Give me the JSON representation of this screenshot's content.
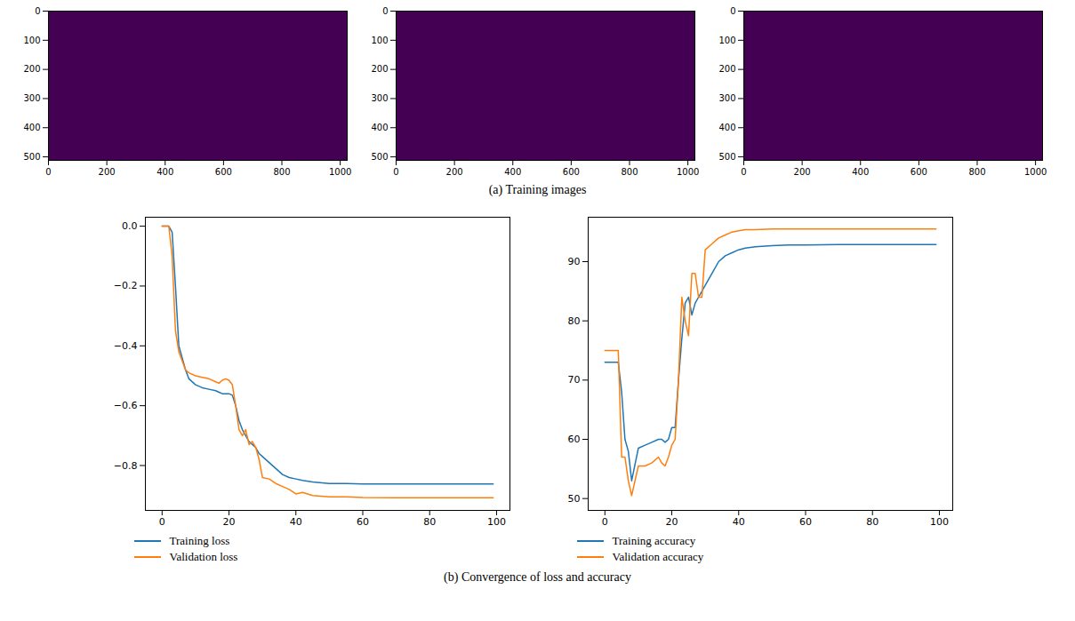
{
  "captions": [
    "(a) Training images",
    "(b) Convergence of loss and accuracy"
  ],
  "chart_data": [
    {
      "type": "image",
      "color": "#440154",
      "xlim": [
        0,
        1024
      ],
      "ylim": [
        512,
        0
      ],
      "xticks": [
        0,
        200,
        400,
        600,
        800,
        1000
      ],
      "yticks": [
        0,
        100,
        200,
        300,
        400,
        500
      ]
    },
    {
      "type": "image",
      "color": "#440154",
      "xlim": [
        0,
        1024
      ],
      "ylim": [
        512,
        0
      ],
      "xticks": [
        0,
        200,
        400,
        600,
        800,
        1000
      ],
      "yticks": [
        0,
        100,
        200,
        300,
        400,
        500
      ]
    },
    {
      "type": "image",
      "color": "#440154",
      "xlim": [
        0,
        1024
      ],
      "ylim": [
        512,
        0
      ],
      "xticks": [
        0,
        200,
        400,
        600,
        800,
        1000
      ],
      "yticks": [
        0,
        100,
        200,
        300,
        400,
        500
      ]
    },
    {
      "type": "line",
      "legend": "bottom",
      "x": [
        0,
        2,
        3,
        4,
        5,
        6,
        7,
        8,
        10,
        12,
        14,
        16,
        17,
        18,
        19,
        20,
        21,
        22,
        23,
        24,
        25,
        26,
        27,
        28,
        29,
        30,
        32,
        34,
        36,
        38,
        40,
        42,
        45,
        50,
        55,
        60,
        70,
        80,
        90,
        99
      ],
      "xlim": [
        -5,
        104
      ],
      "xticks": [
        0,
        20,
        40,
        60,
        80,
        100
      ],
      "ylim": [
        -0.95,
        0.03
      ],
      "yticks": [
        {
          "value": 0,
          "label": "0.0"
        },
        {
          "value": -0.2,
          "label": "−0.2"
        },
        {
          "value": -0.4,
          "label": "−0.4"
        },
        {
          "value": -0.6,
          "label": "−0.6"
        },
        {
          "value": -0.8,
          "label": "−0.8"
        }
      ],
      "series": [
        {
          "name": "Training loss",
          "color": "#1f77b4",
          "values": [
            0.0,
            0.0,
            -0.02,
            -0.2,
            -0.4,
            -0.44,
            -0.48,
            -0.51,
            -0.53,
            -0.54,
            -0.545,
            -0.55,
            -0.555,
            -0.56,
            -0.56,
            -0.56,
            -0.565,
            -0.6,
            -0.65,
            -0.68,
            -0.7,
            -0.72,
            -0.73,
            -0.74,
            -0.76,
            -0.77,
            -0.79,
            -0.81,
            -0.83,
            -0.84,
            -0.845,
            -0.85,
            -0.855,
            -0.86,
            -0.86,
            -0.862,
            -0.862,
            -0.862,
            -0.862,
            -0.862
          ]
        },
        {
          "name": "Validation loss",
          "color": "#ff7f0e",
          "values": [
            0.0,
            0.0,
            -0.1,
            -0.35,
            -0.42,
            -0.45,
            -0.48,
            -0.49,
            -0.5,
            -0.505,
            -0.51,
            -0.52,
            -0.525,
            -0.515,
            -0.51,
            -0.515,
            -0.53,
            -0.6,
            -0.68,
            -0.7,
            -0.68,
            -0.73,
            -0.72,
            -0.74,
            -0.78,
            -0.84,
            -0.845,
            -0.86,
            -0.87,
            -0.88,
            -0.895,
            -0.89,
            -0.9,
            -0.905,
            -0.905,
            -0.907,
            -0.908,
            -0.908,
            -0.908,
            -0.908
          ]
        }
      ]
    },
    {
      "type": "line",
      "legend": "bottom",
      "x": [
        0,
        2,
        3,
        4,
        5,
        6,
        7,
        8,
        10,
        12,
        14,
        16,
        17,
        18,
        19,
        20,
        21,
        22,
        23,
        24,
        25,
        26,
        27,
        28,
        29,
        30,
        32,
        34,
        36,
        38,
        40,
        42,
        45,
        50,
        55,
        60,
        70,
        80,
        90,
        99
      ],
      "xlim": [
        -5,
        104
      ],
      "xticks": [
        0,
        20,
        40,
        60,
        80,
        100
      ],
      "ylim": [
        48,
        97.5
      ],
      "yticks": [
        50,
        60,
        70,
        80,
        90
      ],
      "series": [
        {
          "name": "Training accuracy",
          "color": "#1f77b4",
          "values": [
            73,
            73,
            73,
            73,
            68,
            60,
            58,
            53,
            58.5,
            59,
            59.5,
            60,
            60,
            59.5,
            60,
            62,
            62,
            70,
            77,
            83,
            84,
            81,
            83,
            84,
            85,
            86,
            88,
            90,
            91,
            91.5,
            92,
            92.3,
            92.5,
            92.7,
            92.8,
            92.8,
            92.9,
            92.9,
            92.9,
            92.9
          ]
        },
        {
          "name": "Validation accuracy",
          "color": "#ff7f0e",
          "values": [
            75,
            75,
            75,
            75,
            57,
            57,
            53,
            50.5,
            55.5,
            55.5,
            56,
            57,
            56,
            55.5,
            57,
            59,
            60,
            70,
            84,
            80,
            77.5,
            88,
            88,
            84,
            84,
            92,
            93,
            94,
            94.5,
            95,
            95.2,
            95.4,
            95.4,
            95.5,
            95.5,
            95.5,
            95.5,
            95.5,
            95.5,
            95.5
          ]
        }
      ]
    }
  ]
}
